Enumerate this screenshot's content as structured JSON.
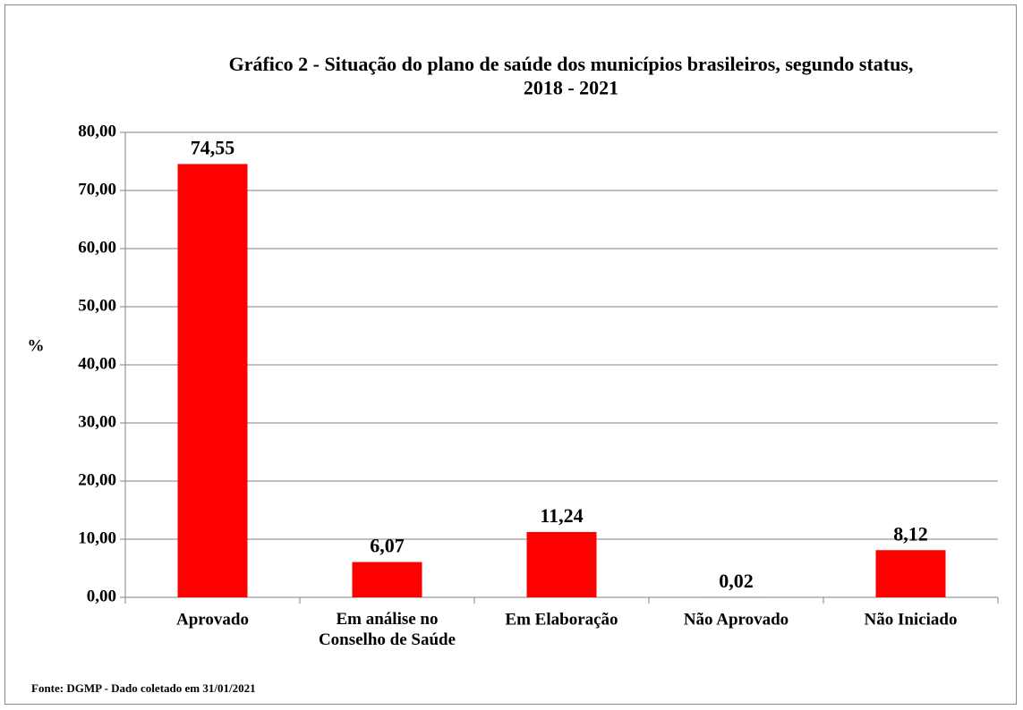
{
  "chart_data": {
    "type": "bar",
    "title": "Gráfico 2 - Situação do plano de saúde dos municípios brasileiros, segundo status,\n2018 - 2021",
    "y_label": "%",
    "source": "Fonte: DGMP - Dado coletado em 31/01/2021",
    "categories": [
      "Aprovado",
      "Em análise no\nConselho de Saúde",
      "Em Elaboração",
      "Não Aprovado",
      "Não Iniciado"
    ],
    "values": [
      74.55,
      6.07,
      11.24,
      0.02,
      8.12
    ],
    "value_labels": [
      "74,55",
      "6,07",
      "11,24",
      "0,02",
      "8,12"
    ],
    "color": "#ff0000",
    "ylim": [
      0,
      80
    ],
    "yticks": [
      {
        "value": 0,
        "label": "0,00"
      },
      {
        "value": 10,
        "label": "10,00"
      },
      {
        "value": 20,
        "label": "20,00"
      },
      {
        "value": 30,
        "label": "30,00"
      },
      {
        "value": 40,
        "label": "40,00"
      },
      {
        "value": 50,
        "label": "50,00"
      },
      {
        "value": 60,
        "label": "60,00"
      },
      {
        "value": 70,
        "label": "70,00"
      },
      {
        "value": 80,
        "label": "80,00"
      }
    ],
    "grid": true
  }
}
